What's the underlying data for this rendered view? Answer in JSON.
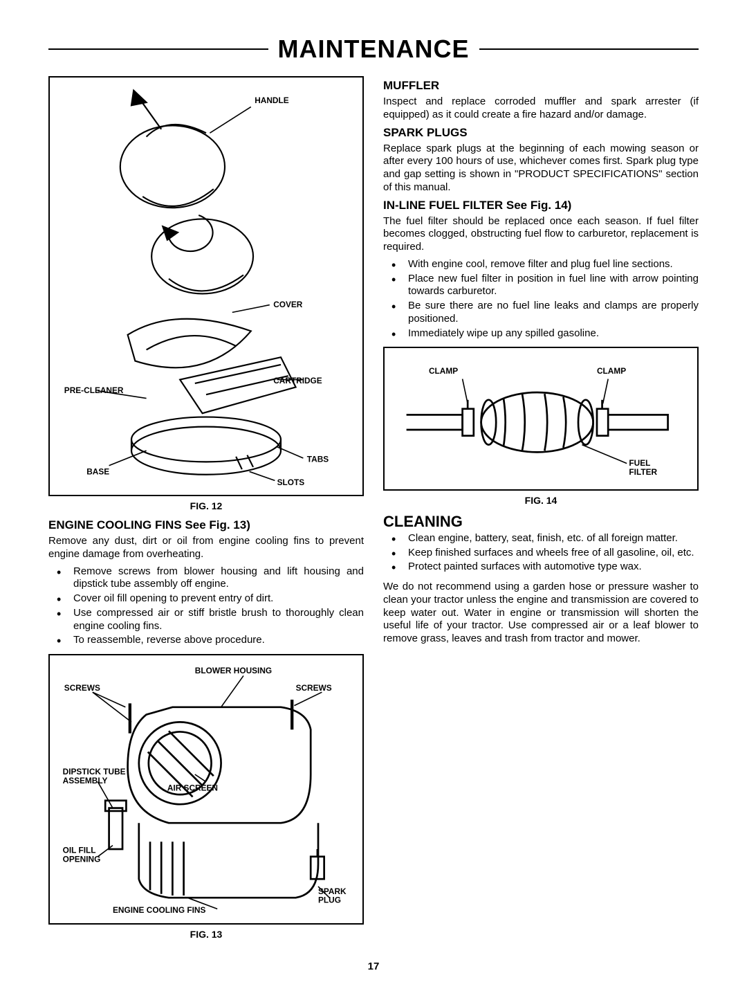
{
  "page_title": "MAINTENANCE",
  "page_number": "17",
  "fig12": {
    "caption": "FIG. 12",
    "labels": {
      "handle": "HANDLE",
      "cover": "COVER",
      "cartridge": "CARTRIDGE",
      "precleaner": "PRE-CLEANER",
      "base": "BASE",
      "tabs": "TABS",
      "slots": "SLOTS"
    }
  },
  "cooling_fins": {
    "heading": "ENGINE COOLING FINS See Fig. 13)",
    "intro": "Remove any dust, dirt or oil from engine cooling fins to prevent engine damage from overheating.",
    "bullets": [
      "Remove screws from blower housing and lift housing and dipstick tube assembly off engine.",
      "Cover oil fill opening to prevent entry of dirt.",
      "Use compressed air or stiff  bristle brush to thoroughly clean engine cooling fins.",
      "To reassemble, reverse above procedure."
    ]
  },
  "fig13": {
    "caption": "FIG. 13",
    "labels": {
      "blower": "BLOWER HOUSING",
      "screws_l": "SCREWS",
      "screws_r": "SCREWS",
      "air_screen": "AIR SCREEN",
      "dipstick": "DIPSTICK TUBE\nASSEMBLY",
      "oil_fill": "OIL FILL\nOPENING",
      "spark": "SPARK\nPLUG",
      "fins": "ENGINE COOLING FINS"
    }
  },
  "muffler": {
    "heading": "MUFFLER",
    "body": "Inspect and replace corroded muffler and spark arrester (if equipped) as it could create a fire hazard and/or damage."
  },
  "spark_plugs": {
    "heading": "SPARK PLUGS",
    "body": "Replace spark plugs at the beginning of each mowing season or after every 100 hours of use, whichever comes first. Spark plug type and gap setting is shown in \"PRODUCT SPECIFICATIONS\" section of this manual."
  },
  "fuel_filter": {
    "heading": "IN-LINE FUEL FILTER  See Fig. 14)",
    "intro": "The fuel filter should be replaced once each season.  If fuel filter becomes clogged, obstructing fuel flow to carburetor, replacement is required.",
    "bullets": [
      "With engine cool, remove filter and plug fuel line sections.",
      "Place new fuel filter in position in fuel line with arrow pointing towards carburetor.",
      "Be sure there are no fuel line leaks and clamps are properly positioned.",
      "Immediately wipe up any spilled gasoline."
    ]
  },
  "fig14": {
    "caption": "FIG. 14",
    "labels": {
      "clamp_l": "CLAMP",
      "clamp_r": "CLAMP",
      "filter": "FUEL\nFILTER"
    }
  },
  "cleaning": {
    "heading": "CLEANING",
    "bullets": [
      "Clean engine, battery, seat, finish, etc. of all foreign matter.",
      "Keep finished surfaces and wheels free of all gasoline, oil, etc.",
      "Protect painted surfaces with automotive type wax."
    ],
    "footer": "We do not recommend using a garden hose or pressure washer to clean your tractor unless the engine and transmission are covered to keep water out. Water in engine or transmission will shorten the useful life of your tractor.  Use compressed air or a leaf blower to remove grass, leaves and trash from tractor and mower."
  }
}
